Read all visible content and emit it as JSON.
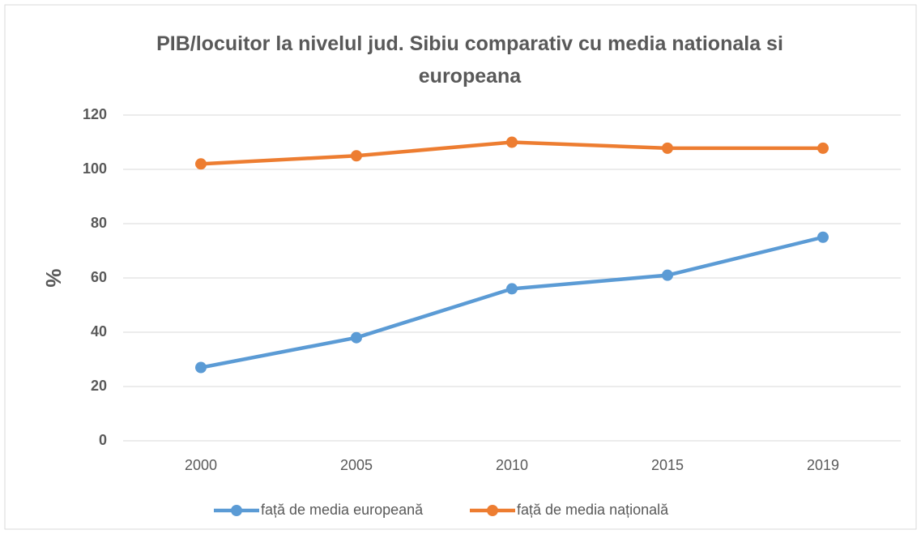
{
  "chart_data": {
    "type": "line",
    "title": "PIB/locuitor la nivelul jud. Sibiu comparativ cu media nationala si europeana",
    "y_label": "%",
    "categories": [
      "2000",
      "2005",
      "2010",
      "2015",
      "2019"
    ],
    "series": [
      {
        "name": "față de media europeană",
        "color": "#5b9bd5",
        "values": [
          27,
          38,
          56,
          61,
          75
        ]
      },
      {
        "name": "față de media națională",
        "color": "#ed7d31",
        "values": [
          102,
          105,
          110,
          107.8,
          107.8
        ]
      }
    ],
    "ylim": [
      0,
      120
    ],
    "yticks": [
      0,
      20,
      40,
      60,
      80,
      100,
      120
    ],
    "grid": true,
    "legend": "bottom"
  }
}
